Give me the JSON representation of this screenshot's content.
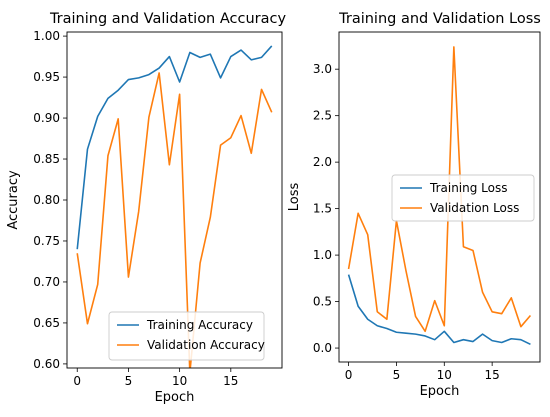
{
  "chart_data": [
    {
      "type": "line",
      "title": "Training and Validation Accuracy",
      "xlabel": "Epoch",
      "ylabel": "Accuracy",
      "xlim": [
        -1,
        20
      ],
      "ylim": [
        0.595,
        1.005
      ],
      "xticks": [
        0,
        5,
        10,
        15
      ],
      "yticks": [
        0.6,
        0.65,
        0.7,
        0.75,
        0.8,
        0.85,
        0.9,
        0.95,
        1.0
      ],
      "ytick_labels": [
        "0.60",
        "0.65",
        "0.70",
        "0.75",
        "0.80",
        "0.85",
        "0.90",
        "0.95",
        "1.00"
      ],
      "legend_position": "lower-right",
      "x": [
        0,
        1,
        2,
        3,
        4,
        5,
        6,
        7,
        8,
        9,
        10,
        11,
        12,
        13,
        14,
        15,
        16,
        17,
        18,
        19
      ],
      "series": [
        {
          "name": "Training Accuracy",
          "color": "#1f77b4",
          "values": [
            0.74,
            0.862,
            0.902,
            0.924,
            0.934,
            0.947,
            0.949,
            0.953,
            0.961,
            0.975,
            0.944,
            0.98,
            0.974,
            0.978,
            0.949,
            0.975,
            0.983,
            0.971,
            0.974,
            0.988
          ]
        },
        {
          "name": "Validation Accuracy",
          "color": "#ff7f0e",
          "values": [
            0.735,
            0.649,
            0.697,
            0.854,
            0.899,
            0.706,
            0.786,
            0.901,
            0.955,
            0.843,
            0.929,
            0.589,
            0.723,
            0.779,
            0.867,
            0.876,
            0.903,
            0.857,
            0.935,
            0.907
          ]
        }
      ]
    },
    {
      "type": "line",
      "title": "Training and Validation Loss",
      "xlabel": "Epoch",
      "ylabel": "Loss",
      "xlim": [
        -1,
        20
      ],
      "ylim": [
        -0.15,
        3.4
      ],
      "xticks": [
        0,
        5,
        10,
        15
      ],
      "yticks": [
        0.0,
        0.5,
        1.0,
        1.5,
        2.0,
        2.5,
        3.0
      ],
      "ytick_labels": [
        "0.0",
        "0.5",
        "1.0",
        "1.5",
        "2.0",
        "2.5",
        "3.0"
      ],
      "legend_position": "center-right",
      "x": [
        0,
        1,
        2,
        3,
        4,
        5,
        6,
        7,
        8,
        9,
        10,
        11,
        12,
        13,
        14,
        15,
        16,
        17,
        18,
        19
      ],
      "series": [
        {
          "name": "Training Loss",
          "color": "#1f77b4",
          "values": [
            0.79,
            0.45,
            0.31,
            0.24,
            0.21,
            0.17,
            0.16,
            0.15,
            0.13,
            0.09,
            0.18,
            0.06,
            0.09,
            0.07,
            0.15,
            0.08,
            0.06,
            0.1,
            0.09,
            0.04
          ]
        },
        {
          "name": "Validation Loss",
          "color": "#ff7f0e",
          "values": [
            0.85,
            1.45,
            1.22,
            0.39,
            0.31,
            1.37,
            0.83,
            0.34,
            0.18,
            0.51,
            0.24,
            3.24,
            1.09,
            1.05,
            0.6,
            0.39,
            0.37,
            0.54,
            0.23,
            0.35
          ]
        }
      ]
    }
  ]
}
